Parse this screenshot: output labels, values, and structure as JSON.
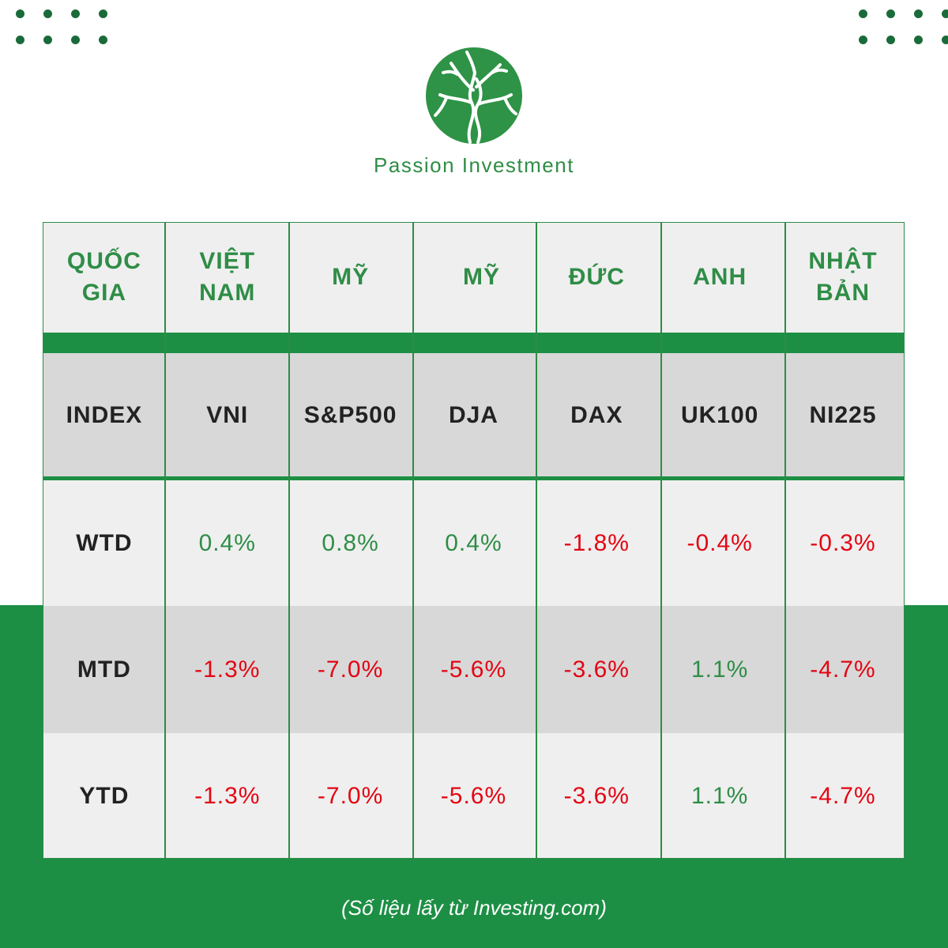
{
  "brand": {
    "name": "Passion Investment",
    "logo_icon": "tree-circle-logo"
  },
  "colors": {
    "accent_green": "#1d8f45",
    "positive": "#2f8d46",
    "negative": "#e30613"
  },
  "table": {
    "country_header": {
      "label": "QUỐC GIA",
      "cells": [
        "VIỆT NAM",
        "MỸ",
        "MỸ",
        "ĐỨC",
        "ANH",
        "NHẬT BẢN"
      ]
    },
    "index_header": {
      "label": "INDEX",
      "cells": [
        "VNI",
        "S&P500",
        "DJA",
        "DAX",
        "UK100",
        "NI225"
      ]
    },
    "rows": [
      {
        "label": "WTD",
        "cells": [
          "0.4%",
          "0.8%",
          "0.4%",
          "-1.8%",
          "-0.4%",
          "-0.3%"
        ]
      },
      {
        "label": "MTD",
        "cells": [
          "-1.3%",
          "-7.0%",
          "-5.6%",
          "-3.6%",
          "1.1%",
          "-4.7%"
        ]
      },
      {
        "label": "YTD",
        "cells": [
          "-1.3%",
          "-7.0%",
          "-5.6%",
          "-3.6%",
          "1.1%",
          "-4.7%"
        ]
      }
    ]
  },
  "footnote": "(Số liệu lấy từ Investing.com)"
}
